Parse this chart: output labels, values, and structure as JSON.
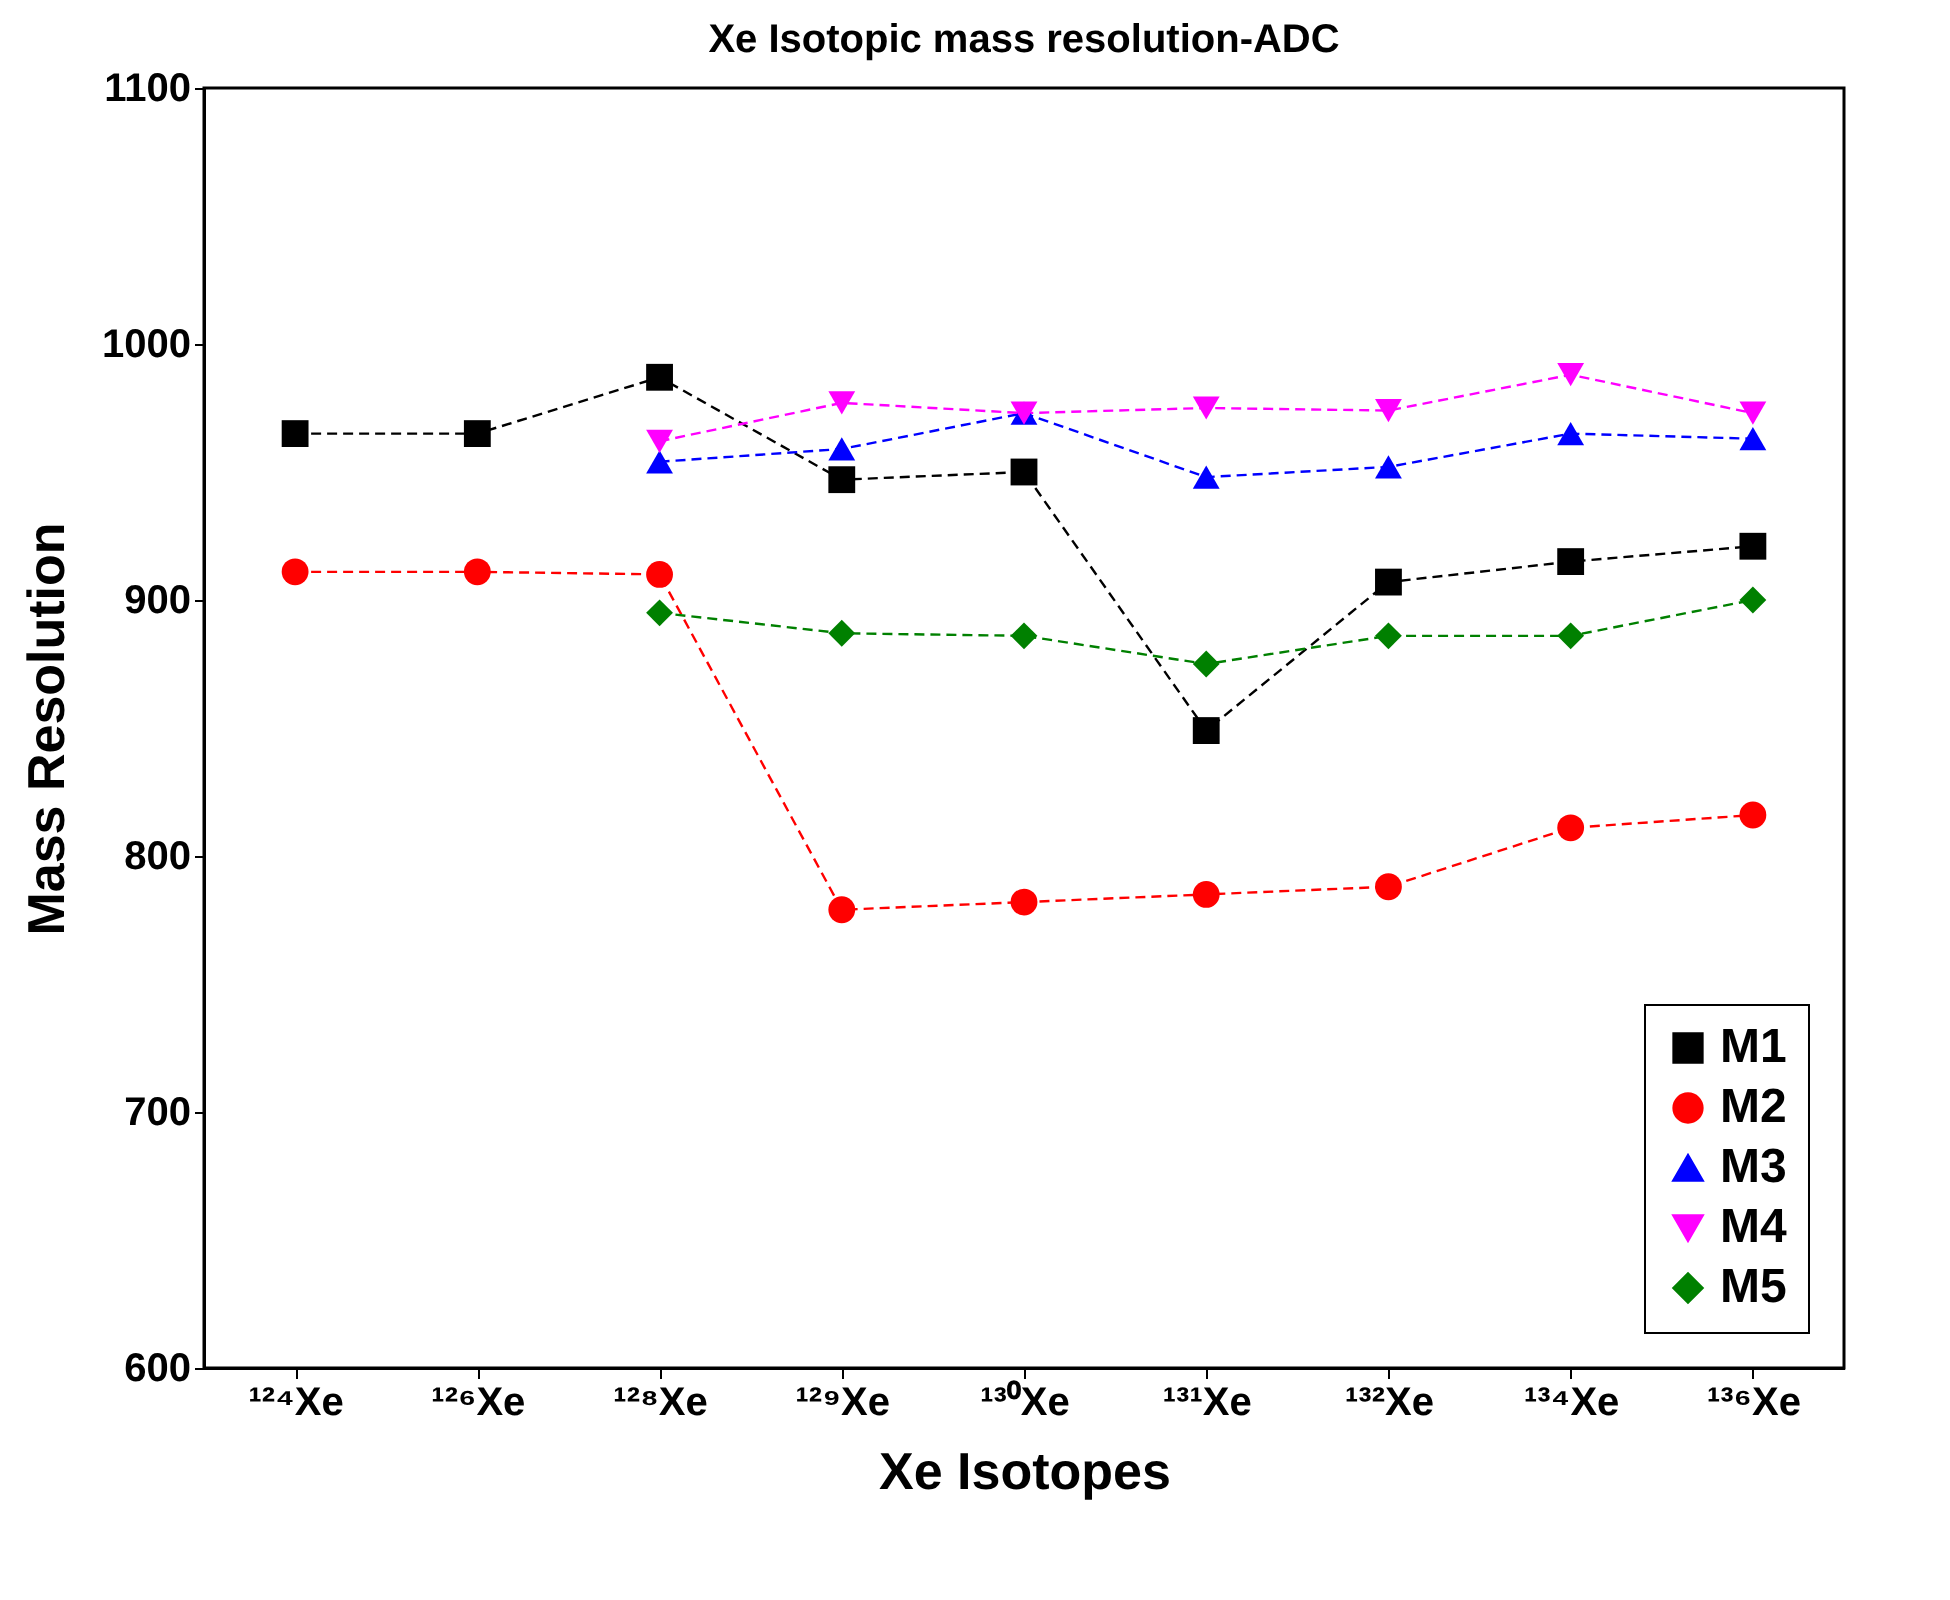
{
  "chart_data": {
    "type": "line",
    "title": "Xe Isotopic mass resolution-ADC",
    "xlabel": "Xe Isotopes",
    "ylabel": "Mass Resolution",
    "categories": [
      "¹²⁴Xe",
      "¹²⁶Xe",
      "¹²⁸Xe",
      "¹²⁹Xe",
      "¹³⁰Xe",
      "¹³¹Xe",
      "¹³²Xe",
      "¹³⁴Xe",
      "¹³⁶Xe"
    ],
    "series": [
      {
        "name": "M1",
        "color": "#000000",
        "marker": "square",
        "values": [
          965,
          965,
          987,
          947,
          950,
          849,
          907,
          915,
          921
        ]
      },
      {
        "name": "M2",
        "color": "#ff0000",
        "marker": "circle",
        "values": [
          911,
          911,
          910,
          779,
          782,
          785,
          788,
          811,
          816
        ]
      },
      {
        "name": "M3",
        "color": "#0000ff",
        "marker": "triangle",
        "values": [
          null,
          null,
          954,
          959,
          973,
          948,
          952,
          965,
          963
        ]
      },
      {
        "name": "M4",
        "color": "#ff00ff",
        "marker": "triangle-down",
        "values": [
          null,
          null,
          962,
          977,
          973,
          975,
          974,
          988,
          973
        ]
      },
      {
        "name": "M5",
        "color": "#008000",
        "marker": "diamond",
        "values": [
          null,
          null,
          895,
          887,
          886,
          875,
          886,
          886,
          900
        ]
      }
    ],
    "ylim": [
      600,
      1100
    ],
    "yticks": [
      600,
      700,
      800,
      900,
      1000,
      1100
    ],
    "line_style": "dashed",
    "legend": "bottom right",
    "grid": false
  }
}
